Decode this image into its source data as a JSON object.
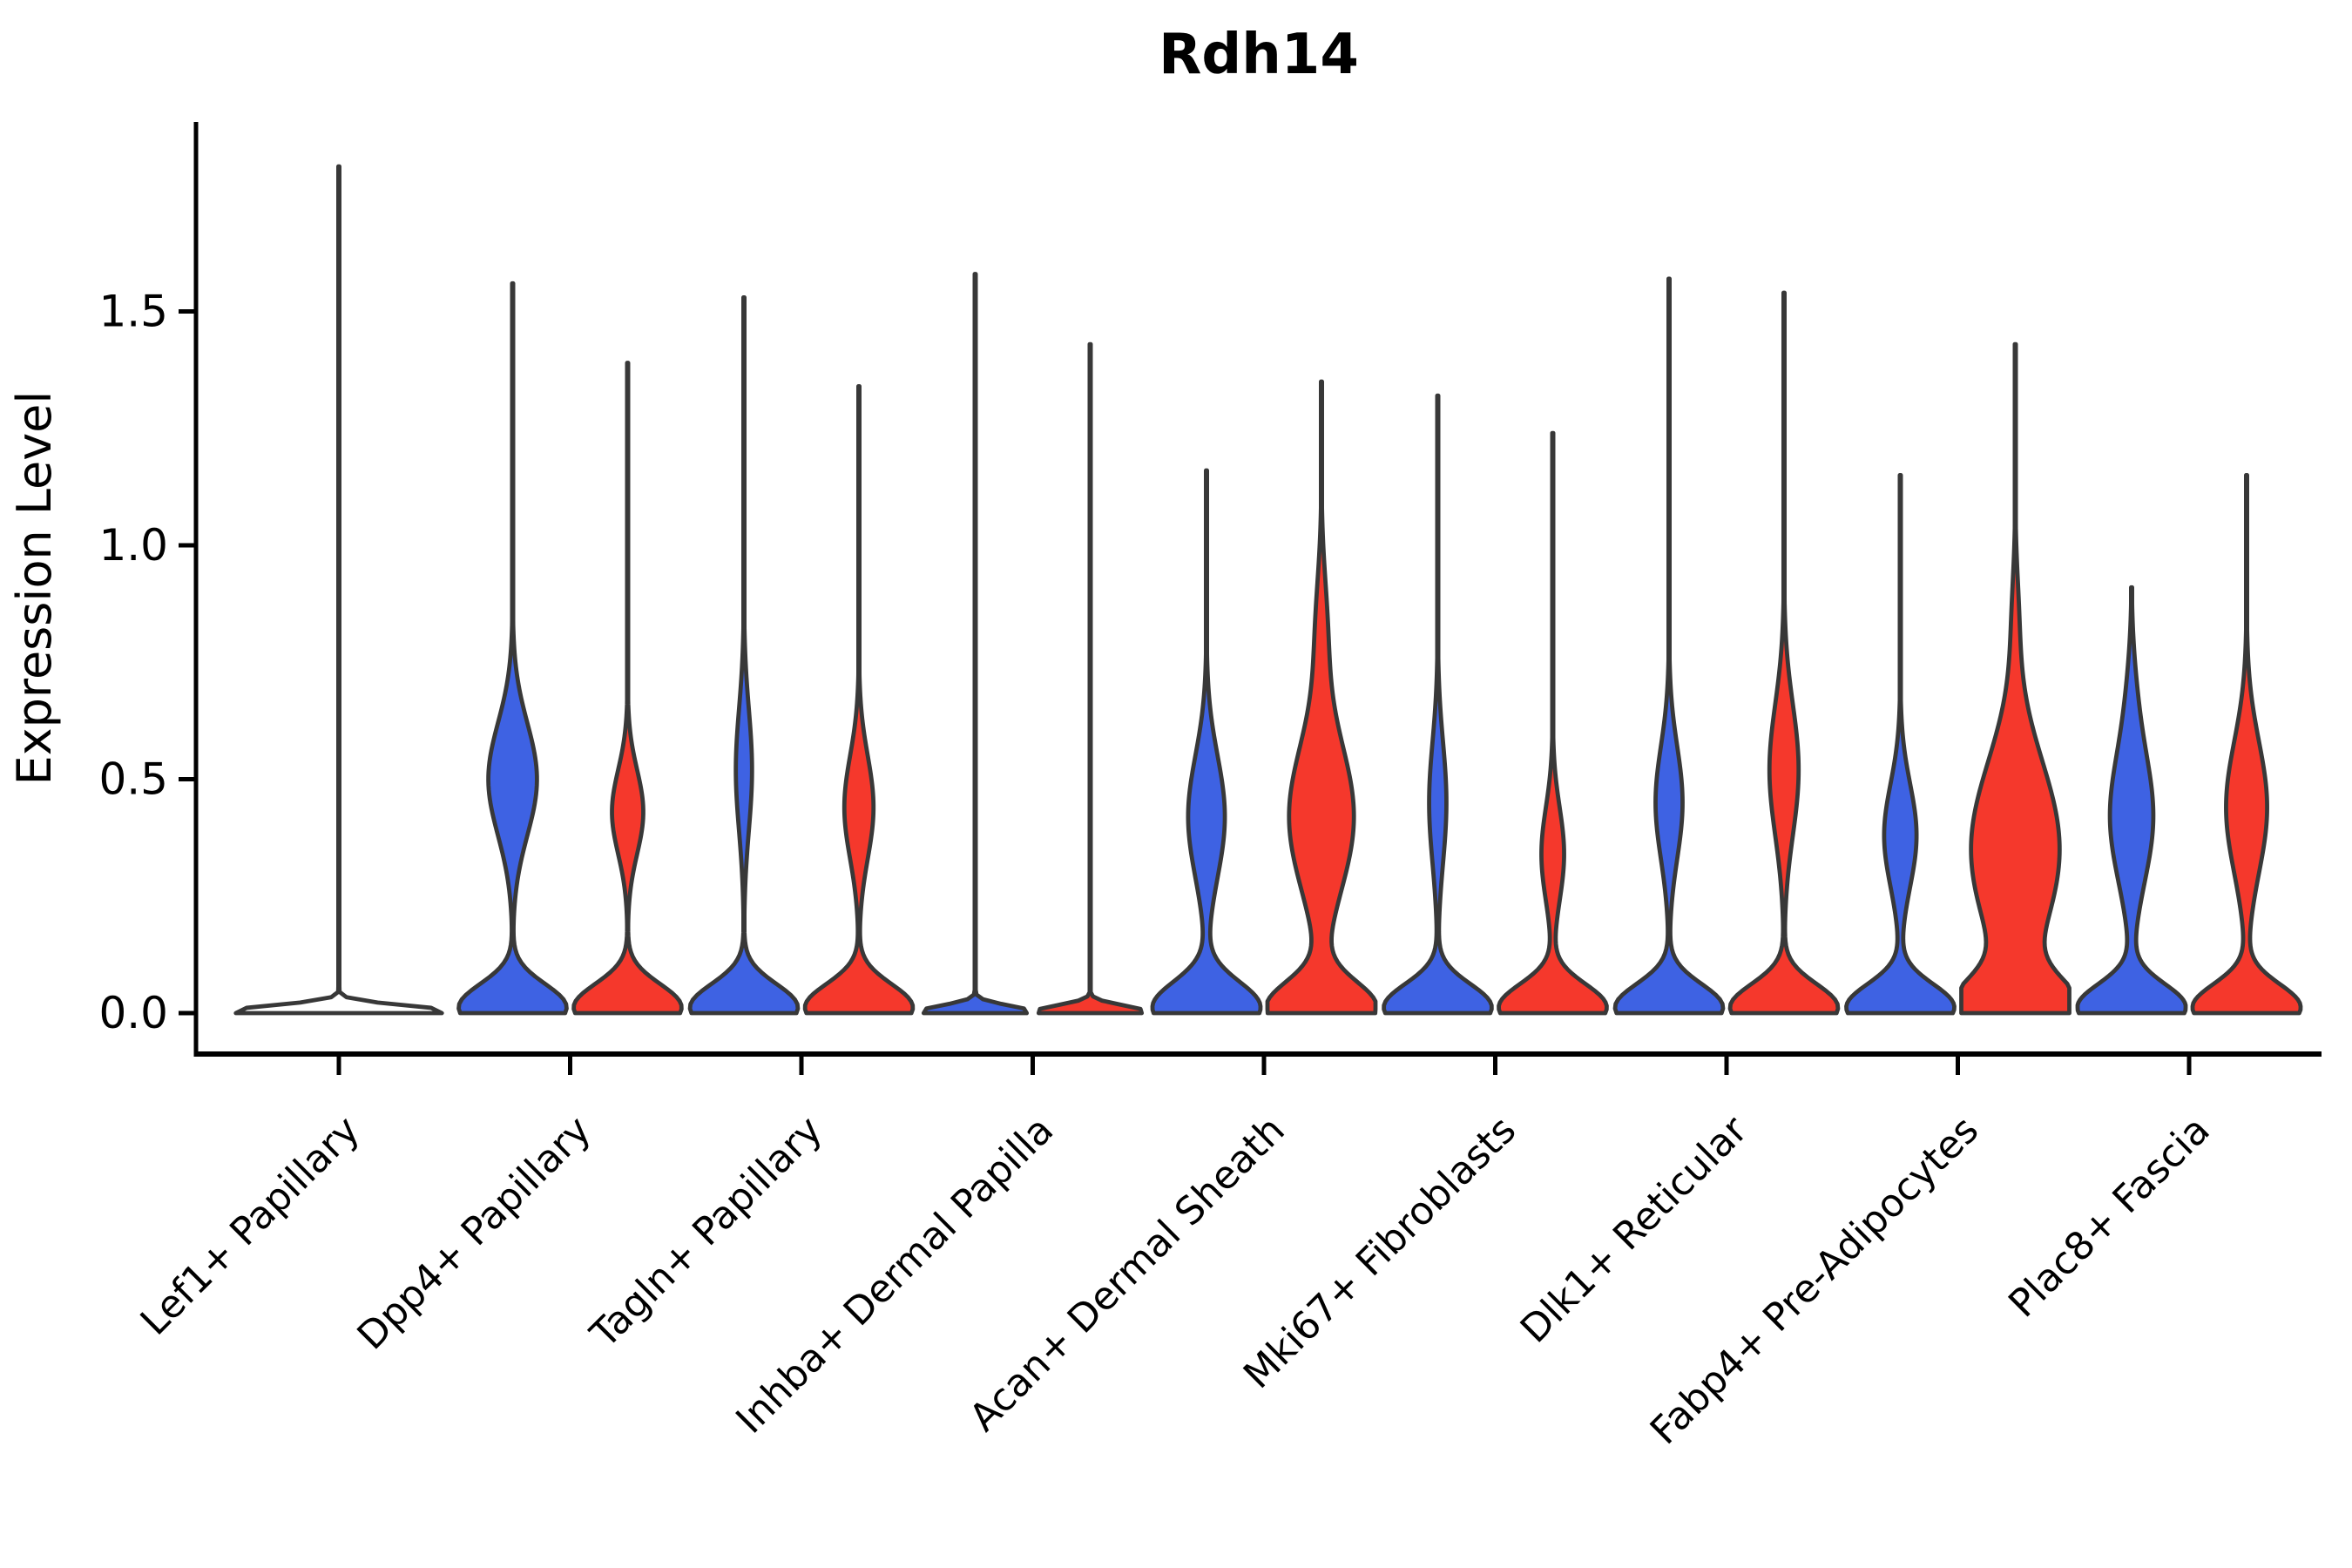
{
  "chart_data": {
    "type": "violin",
    "title": "Rdh14",
    "ylabel": "Expression Level",
    "xlabel": "",
    "ylim": [
      -0.09,
      1.9
    ],
    "grid": false,
    "legend": "none",
    "split_violin": true,
    "yticks": [
      {
        "v": 0.0,
        "label": "0.0"
      },
      {
        "v": 0.5,
        "label": "0.5"
      },
      {
        "v": 1.0,
        "label": "1.0"
      },
      {
        "v": 1.5,
        "label": "1.5"
      }
    ],
    "categories": [
      "Lef1+ Papillary",
      "Dpp4+ Papillary",
      "Tagln+ Papillary",
      "Inhba+ Dermal Papilla",
      "Acan+ Dermal Sheath",
      "Mki67+ Fibroblasts",
      "Dlk1+ Reticular",
      "Fabp4+ Pre-Adipocytes",
      "Plac8+ Fascia"
    ],
    "colors": {
      "blue_series": "#3E62E3",
      "red_series": "#F5382C",
      "unsplit_fill": "#FFFFFF",
      "violin_outline": "#383838",
      "axis": "#000000",
      "text": "#000000"
    },
    "density_note": "each violin described by gaussian mixture components [center_expression, sigma, relative_halfwidth]; max = top of violin (highest expressing cell)",
    "violins": [
      {
        "category_index": 0,
        "side": "single",
        "series": "none",
        "max": 1.81,
        "components": [
          [
            0.004,
            0.013,
            1.0
          ]
        ]
      },
      {
        "category_index": 1,
        "side": "left",
        "series": "blue",
        "max": 1.56,
        "components": [
          [
            0.012,
            0.05,
            1.0
          ],
          [
            0.5,
            0.12,
            0.45
          ]
        ]
      },
      {
        "category_index": 1,
        "side": "right",
        "series": "red",
        "max": 1.39,
        "components": [
          [
            0.012,
            0.05,
            1.0
          ],
          [
            0.43,
            0.09,
            0.29
          ]
        ]
      },
      {
        "category_index": 2,
        "side": "left",
        "series": "blue",
        "max": 1.53,
        "components": [
          [
            0.012,
            0.05,
            1.0
          ],
          [
            0.52,
            0.13,
            0.15
          ]
        ]
      },
      {
        "category_index": 2,
        "side": "right",
        "series": "red",
        "max": 1.34,
        "components": [
          [
            0.012,
            0.05,
            1.0
          ],
          [
            0.44,
            0.11,
            0.27
          ]
        ]
      },
      {
        "category_index": 3,
        "side": "left",
        "series": "blue",
        "max": 1.58,
        "components": [
          [
            0.004,
            0.013,
            1.0
          ]
        ]
      },
      {
        "category_index": 3,
        "side": "right",
        "series": "red",
        "max": 1.43,
        "components": [
          [
            0.004,
            0.013,
            1.0
          ]
        ]
      },
      {
        "category_index": 4,
        "side": "left",
        "series": "blue",
        "max": 1.16,
        "components": [
          [
            0.012,
            0.055,
            1.0
          ],
          [
            0.42,
            0.13,
            0.34
          ]
        ]
      },
      {
        "category_index": 4,
        "side": "right",
        "series": "red",
        "max": 1.35,
        "components": [
          [
            0.012,
            0.055,
            1.0
          ],
          [
            0.42,
            0.16,
            0.6
          ],
          [
            0.82,
            0.12,
            0.1
          ]
        ]
      },
      {
        "category_index": 5,
        "side": "left",
        "series": "blue",
        "max": 1.32,
        "components": [
          [
            0.012,
            0.05,
            1.0
          ],
          [
            0.45,
            0.13,
            0.16
          ]
        ]
      },
      {
        "category_index": 5,
        "side": "right",
        "series": "red",
        "max": 1.24,
        "components": [
          [
            0.012,
            0.05,
            1.0
          ],
          [
            0.34,
            0.1,
            0.21
          ]
        ]
      },
      {
        "category_index": 6,
        "side": "left",
        "series": "blue",
        "max": 1.57,
        "components": [
          [
            0.012,
            0.05,
            1.0
          ],
          [
            0.45,
            0.12,
            0.25
          ]
        ]
      },
      {
        "category_index": 6,
        "side": "right",
        "series": "red",
        "max": 1.54,
        "components": [
          [
            0.012,
            0.05,
            1.0
          ],
          [
            0.52,
            0.14,
            0.27
          ]
        ]
      },
      {
        "category_index": 7,
        "side": "left",
        "series": "blue",
        "max": 1.15,
        "components": [
          [
            0.012,
            0.05,
            1.0
          ],
          [
            0.38,
            0.11,
            0.3
          ]
        ]
      },
      {
        "category_index": 7,
        "side": "right",
        "series": "red",
        "max": 1.43,
        "components": [
          [
            0.012,
            0.06,
            1.0
          ],
          [
            0.35,
            0.19,
            0.82
          ],
          [
            0.85,
            0.1,
            0.05
          ]
        ]
      },
      {
        "category_index": 8,
        "side": "left",
        "series": "blue",
        "max": 0.91,
        "components": [
          [
            0.012,
            0.05,
            1.0
          ],
          [
            0.42,
            0.14,
            0.4
          ],
          [
            0.68,
            0.1,
            0.05
          ]
        ]
      },
      {
        "category_index": 8,
        "side": "right",
        "series": "red",
        "max": 1.15,
        "components": [
          [
            0.012,
            0.05,
            1.0
          ],
          [
            0.44,
            0.14,
            0.38
          ]
        ]
      }
    ]
  }
}
